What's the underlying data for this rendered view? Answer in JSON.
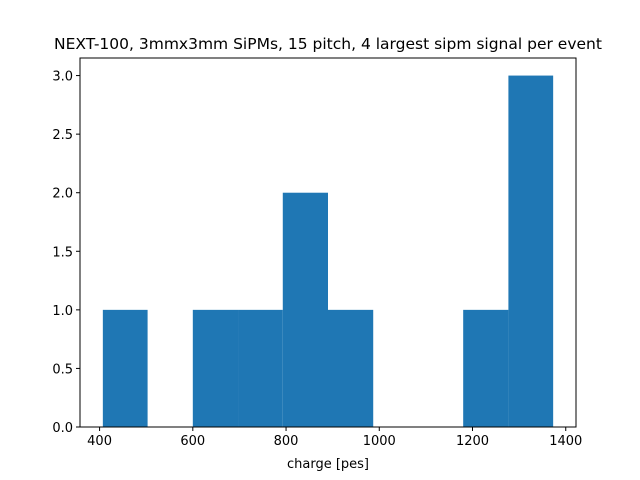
{
  "chart_data": {
    "type": "bar",
    "title": "NEXT-100, 3mmx3mm SiPMs, 15 pitch, 4 largest sipm signal per event",
    "xlabel": "charge [pes]",
    "ylabel": "",
    "bin_edges": [
      407,
      503,
      600,
      697,
      793,
      890,
      987,
      1083,
      1180,
      1277,
      1373
    ],
    "values": [
      1,
      0,
      1,
      1,
      2,
      1,
      0,
      0,
      1,
      3
    ],
    "xlim": [
      358,
      1422
    ],
    "ylim": [
      0,
      3.15
    ],
    "xticks": [
      400,
      600,
      800,
      1000,
      1200,
      1400
    ],
    "yticks": [
      0.0,
      0.5,
      1.0,
      1.5,
      2.0,
      2.5,
      3.0
    ],
    "xtick_labels": [
      "400",
      "600",
      "800",
      "1000",
      "1200",
      "1400"
    ],
    "ytick_labels": [
      "0.0",
      "0.5",
      "1.0",
      "1.5",
      "2.0",
      "2.5",
      "3.0"
    ],
    "bar_color": "#1f77b4",
    "grid": false
  }
}
